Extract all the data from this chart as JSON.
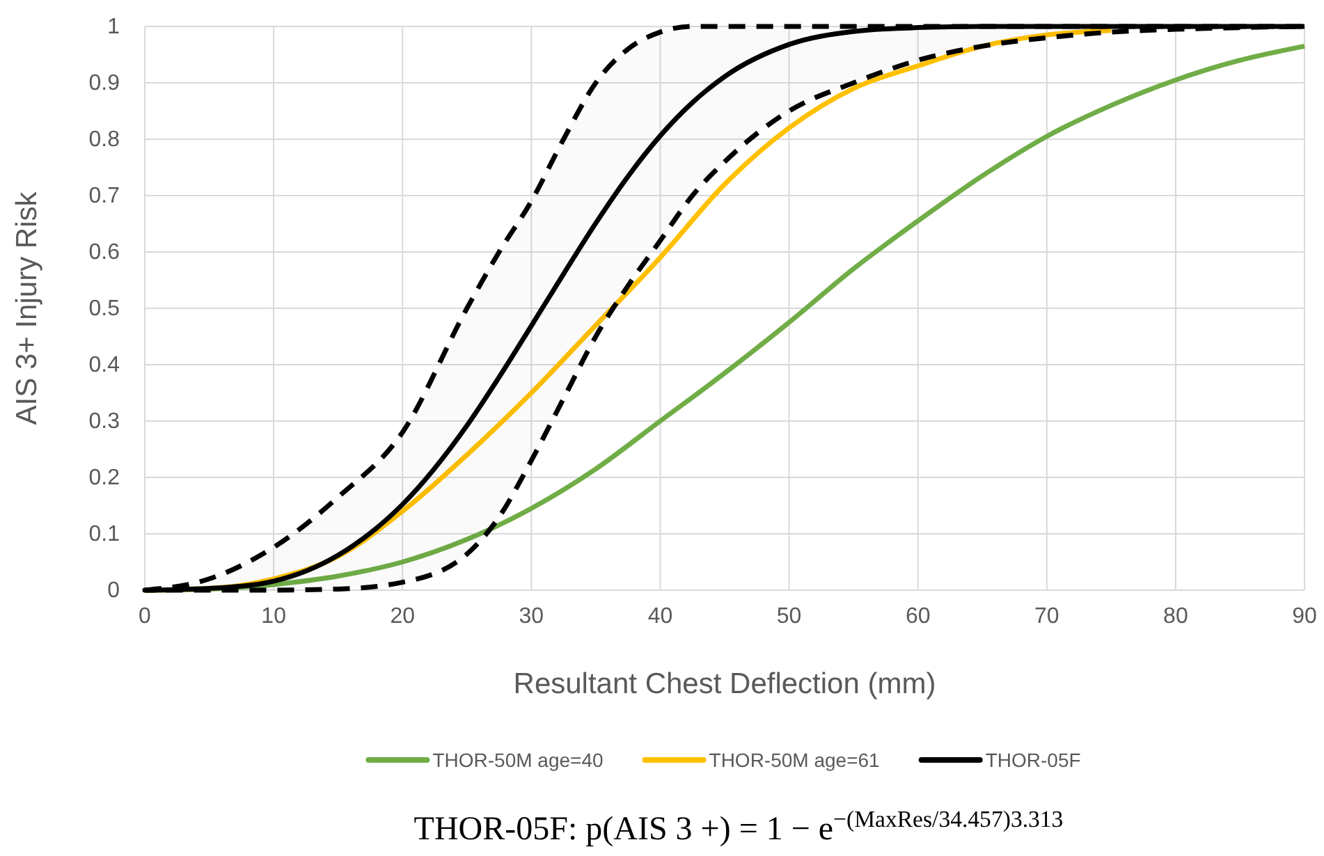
{
  "chart_data": {
    "type": "line",
    "xlabel": "Resultant Chest Deflection (mm)",
    "ylabel": "AIS 3+ Injury Risk",
    "xlim": [
      0,
      90
    ],
    "xticks": [
      0,
      10,
      20,
      30,
      40,
      50,
      60,
      70,
      80,
      90
    ],
    "ylim": [
      0,
      1
    ],
    "yticks": [
      0,
      0.1,
      0.2,
      0.3,
      0.4,
      0.5,
      0.6,
      0.7,
      0.8,
      0.9,
      1
    ],
    "grid": true,
    "legend": "bottom",
    "line_style": "solid",
    "marker": "none",
    "annotations": [
      "THOR-05F:    p(AIS 3 +) = 1 − e$^{−(MaxRes/34.457)}$$^{3.313}$"
    ],
    "x": [
      0,
      5,
      10,
      15,
      20,
      25,
      30,
      35,
      40,
      45,
      50,
      55,
      60,
      65,
      70,
      75,
      80,
      85,
      90
    ],
    "series": [
      {
        "name": "THOR-50M age=40",
        "color": "#70ad47",
        "values": [
          0,
          0.002,
          0.01,
          0.025,
          0.05,
          0.09,
          0.145,
          0.215,
          0.3,
          0.385,
          0.475,
          0.57,
          0.655,
          0.735,
          0.805,
          0.86,
          0.905,
          0.94,
          0.965
        ]
      },
      {
        "name": "THOR-50M age=61",
        "color": "#ffc000",
        "values": [
          0,
          0.003,
          0.02,
          0.06,
          0.14,
          0.24,
          0.35,
          0.47,
          0.59,
          0.72,
          0.82,
          0.89,
          0.93,
          0.965,
          0.985,
          0.993,
          null,
          null,
          null
        ]
      },
      {
        "name": "THOR-05F",
        "color": "#000000",
        "x": [
          0,
          5,
          10,
          15,
          20,
          25,
          27.5,
          30,
          32.5,
          35,
          37.5,
          40,
          42.5,
          45,
          50,
          55,
          60,
          65,
          70,
          75,
          80,
          85,
          90
        ],
        "values": [
          0,
          0.003,
          0.016,
          0.062,
          0.152,
          0.292,
          0.378,
          0.469,
          0.561,
          0.651,
          0.734,
          0.806,
          0.865,
          0.911,
          0.968,
          0.991,
          0.998,
          1,
          1,
          1,
          1,
          1,
          1
        ],
        "lower": [
          0,
          0,
          0,
          0.002,
          0.014,
          0.064,
          0.13,
          0.23,
          0.34,
          0.45,
          0.54,
          0.62,
          0.7,
          0.76,
          0.85,
          0.9,
          0.94,
          0.965,
          0.98,
          0.99,
          0.995,
          0.998,
          1
        ],
        "upper": [
          0,
          0.02,
          0.076,
          0.165,
          0.28,
          0.5,
          0.6,
          0.69,
          0.8,
          0.9,
          0.96,
          0.99,
          1,
          1,
          1,
          1,
          1,
          1,
          1,
          1,
          1,
          1,
          1
        ]
      }
    ]
  }
}
